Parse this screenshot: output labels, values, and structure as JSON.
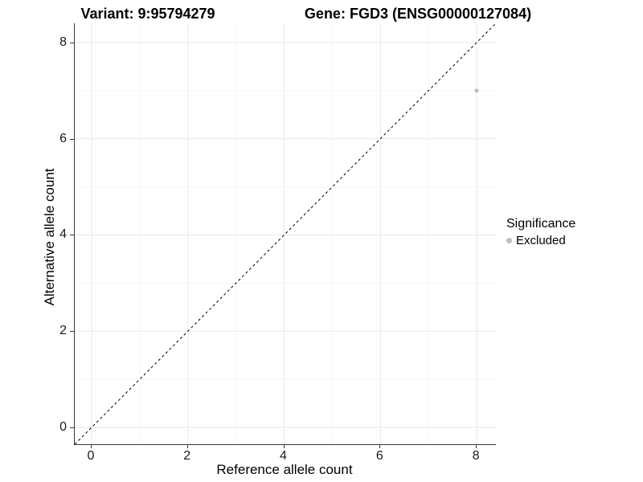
{
  "chart_data": {
    "type": "scatter",
    "titles": {
      "left": "Variant: 9:95794279",
      "right": "Gene: FGD3 (ENSG00000127084)"
    },
    "xlabel": "Reference allele count",
    "ylabel": "Alternative allele count",
    "xlim": [
      -0.35,
      8.4
    ],
    "ylim": [
      -0.35,
      8.4
    ],
    "xticks": [
      0,
      2,
      4,
      6,
      8
    ],
    "yticks": [
      0,
      2,
      4,
      6,
      8
    ],
    "minor_xticks": [
      1,
      3,
      5,
      7
    ],
    "minor_yticks": [
      1,
      3,
      5,
      7
    ],
    "grid": true,
    "identity_line": {
      "slope": 1,
      "intercept": 0,
      "style": "dashed",
      "color": "#000000"
    },
    "series": [
      {
        "name": "Excluded",
        "color": "#bebebe",
        "points": [
          {
            "x": 8,
            "y": 7
          }
        ]
      }
    ],
    "legend": {
      "title": "Significance",
      "position": "right",
      "items": [
        {
          "label": "Excluded",
          "color": "#bebebe"
        }
      ]
    },
    "colors": {
      "background": "#ffffff",
      "grid_major": "#e9e9e9",
      "grid_minor": "#f4f4f4",
      "axis": "#383838",
      "point": "#bebebe"
    }
  }
}
